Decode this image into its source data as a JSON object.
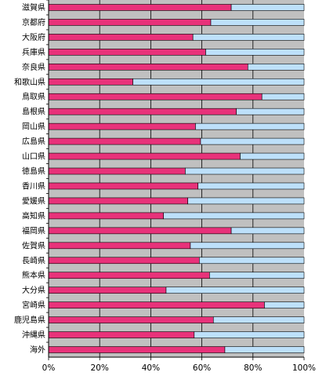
{
  "chart_data": {
    "type": "bar",
    "orientation": "horizontal",
    "stacked_percent": true,
    "title": "",
    "xlabel": "",
    "ylabel": "",
    "xlim": [
      0,
      100
    ],
    "grid": "vertical gridlines at 20% steps",
    "plot_background": "#c0c0c0",
    "categories": [
      "滋賀県",
      "京都府",
      "大阪府",
      "兵庫県",
      "奈良県",
      "和歌山県",
      "鳥取県",
      "島根県",
      "岡山県",
      "広島県",
      "山口県",
      "徳島県",
      "香川県",
      "愛媛県",
      "高知県",
      "福岡県",
      "佐賀県",
      "長崎県",
      "熊本県",
      "大分県",
      "宮崎県",
      "鹿児島県",
      "沖縄県",
      "海外"
    ],
    "series": [
      {
        "color": "#e8327a",
        "values": [
          71.5,
          63.5,
          56.5,
          61.5,
          78,
          33,
          83.5,
          73.5,
          57.5,
          59.5,
          75,
          53.5,
          58.5,
          54.5,
          45,
          71.5,
          55.5,
          59,
          63,
          46,
          84.5,
          64.5,
          57,
          69
        ]
      },
      {
        "color": "#bde0fa",
        "values": [
          28.5,
          36.5,
          43.5,
          38.5,
          22,
          67,
          16.5,
          26.5,
          42.5,
          40.5,
          25,
          46.5,
          41.5,
          45.5,
          55,
          28.5,
          44.5,
          41,
          37,
          54,
          15.5,
          35.5,
          43,
          31
        ]
      }
    ],
    "ticks": [
      "0%",
      "20%",
      "40%",
      "60%",
      "80%",
      "100%"
    ]
  }
}
